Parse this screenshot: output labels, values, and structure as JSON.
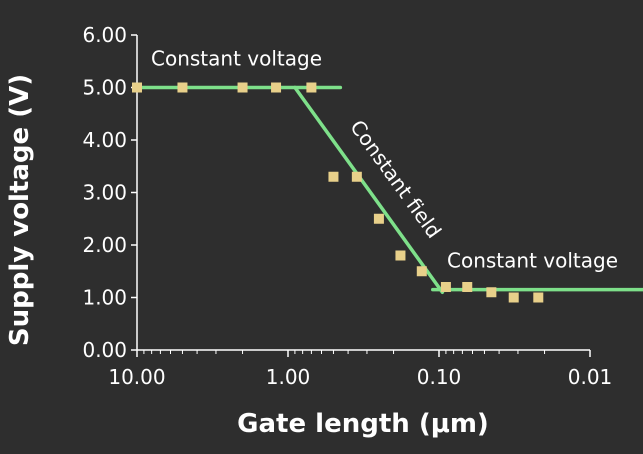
{
  "chart_data": {
    "type": "scatter",
    "xlabel": "Gate length (μm)",
    "ylabel": "Supply voltage (V)",
    "x_scale": "log",
    "x_reversed": true,
    "xlim": [
      10.0,
      0.01
    ],
    "ylim": [
      0.0,
      6.0
    ],
    "x_ticks": [
      10.0,
      1.0,
      0.1,
      0.01
    ],
    "x_tick_labels": [
      "10.00",
      "1.00",
      "0.10",
      "0.01"
    ],
    "y_ticks": [
      0,
      1,
      2,
      3,
      4,
      5,
      6
    ],
    "y_tick_labels": [
      "0.00",
      "1.00",
      "2.00",
      "3.00",
      "4.00",
      "5.00",
      "6.00"
    ],
    "grid": false,
    "points": {
      "x": [
        10.0,
        5.0,
        2.0,
        1.2,
        0.7,
        0.5,
        0.35,
        0.25,
        0.18,
        0.13,
        0.09,
        0.065,
        0.045,
        0.032,
        0.022
      ],
      "y": [
        5.0,
        5.0,
        5.0,
        5.0,
        5.0,
        3.3,
        3.3,
        2.5,
        1.8,
        1.5,
        1.2,
        1.2,
        1.1,
        1.0,
        1.0
      ],
      "color": "#e8d08a"
    },
    "trend_lines": [
      {
        "label": "Constant voltage",
        "x": [
          10.0,
          0.45
        ],
        "y": [
          5.0,
          5.0
        ]
      },
      {
        "label": "Constant field",
        "x": [
          0.9,
          0.095
        ],
        "y": [
          5.0,
          1.1
        ]
      },
      {
        "label": "Constant voltage",
        "x": [
          0.11,
          0.003
        ],
        "y": [
          1.15,
          1.15
        ]
      }
    ],
    "line_color": "#7ee08a",
    "background": "#2e2e2e",
    "axis_color": "#ffffff"
  }
}
